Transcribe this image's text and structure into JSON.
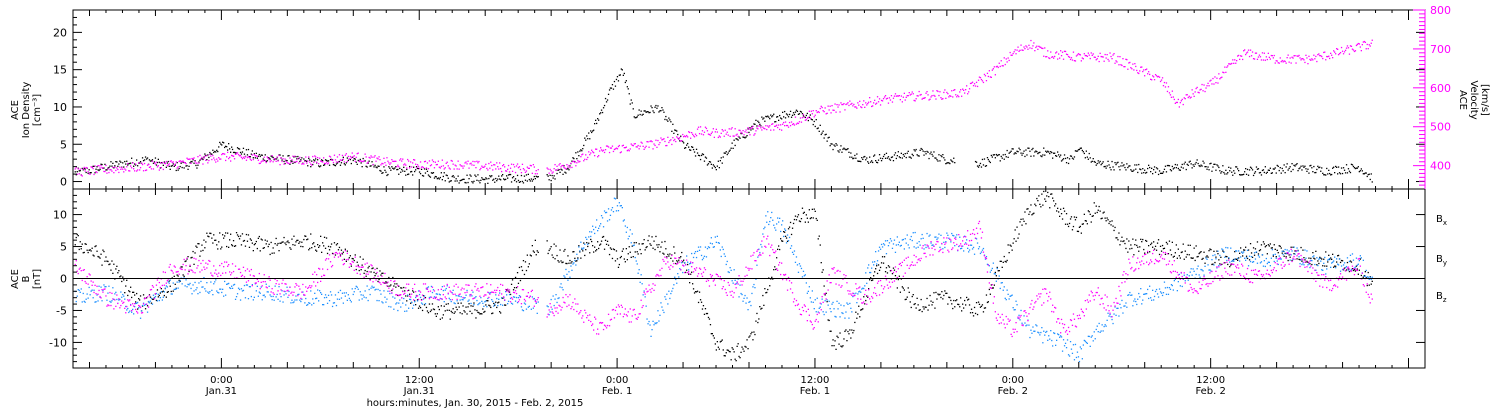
{
  "chart_data": [
    {
      "type": "scatter",
      "panel": "top",
      "ylabel_lines": [
        "ACE",
        "Ion Density",
        "[cm⁻³]"
      ],
      "ylabel_right_lines": [
        "ACE",
        "Velocity",
        "[km/s]"
      ],
      "ylim": [
        -1,
        23
      ],
      "y_ticks": [
        0,
        5,
        10,
        15,
        20
      ],
      "ylim_right": [
        340,
        800
      ],
      "y_ticks_right": [
        400,
        500,
        600,
        700,
        800
      ],
      "series": [
        {
          "name": "Ion Density",
          "axis": "left",
          "color": "#000000",
          "x": [
            -8.9,
            -6,
            -4.5,
            -3,
            -1.5,
            0,
            2,
            4,
            6,
            8,
            10,
            12,
            14,
            16,
            18,
            19.8,
            21,
            22.5,
            23.5,
            24.3,
            25,
            26.5,
            28,
            30,
            31,
            32.5,
            34,
            35,
            36,
            37,
            39,
            41,
            42.5,
            44,
            46,
            48,
            50,
            51.5,
            52,
            53,
            55,
            57,
            59,
            61,
            63,
            65,
            67,
            69,
            69.8
          ],
          "values": [
            1.2,
            2.5,
            3,
            2,
            2.5,
            5,
            3.5,
            3,
            2.5,
            3,
            1.5,
            1.5,
            0.5,
            0.4,
            0.5,
            0.5,
            2,
            7,
            12,
            15,
            9,
            10,
            5,
            2,
            5,
            8,
            9,
            9.5,
            8,
            5,
            3,
            3.5,
            4,
            3,
            2.5,
            4,
            4,
            3,
            4.5,
            2.5,
            2,
            1.5,
            2.5,
            1.5,
            1.5,
            2,
            1.5,
            2,
            0.5
          ]
        },
        {
          "name": "Velocity",
          "axis": "right",
          "color": "#ff00ff",
          "x": [
            -8.9,
            -6,
            -3,
            0,
            2,
            4,
            6,
            8,
            10,
            12,
            14,
            16,
            18,
            19.8,
            21,
            23,
            24,
            26,
            27.5,
            29,
            30,
            32,
            34,
            35,
            36,
            38,
            40,
            42,
            44,
            45,
            46,
            47,
            48,
            49,
            50,
            52,
            54,
            56,
            57,
            58,
            59,
            60,
            62,
            64,
            66,
            68,
            69.8
          ],
          "values": [
            385,
            395,
            405,
            425,
            420,
            415,
            415,
            425,
            410,
            405,
            405,
            400,
            395,
            390,
            405,
            440,
            445,
            455,
            470,
            490,
            485,
            490,
            505,
            520,
            540,
            555,
            570,
            580,
            585,
            590,
            620,
            650,
            690,
            715,
            690,
            680,
            680,
            640,
            620,
            560,
            590,
            610,
            690,
            675,
            675,
            695,
            715
          ]
        }
      ]
    },
    {
      "type": "scatter",
      "panel": "bottom",
      "ylabel_lines": [
        "ACE",
        "B",
        "[nT]"
      ],
      "ylim": [
        -14,
        14
      ],
      "y_ticks": [
        -10,
        -5,
        0,
        5,
        10
      ],
      "zero_line": true,
      "legend": [
        {
          "label": "B",
          "sub": "x",
          "color": "#000000"
        },
        {
          "label": "B",
          "sub": "y",
          "color": "#1e90ff"
        },
        {
          "label": "B",
          "sub": "z",
          "color": "#ff00ff"
        }
      ],
      "series": [
        {
          "name": "Bx",
          "color": "#000000",
          "x": [
            -8.9,
            -7,
            -5,
            -3,
            -1,
            1,
            3,
            5,
            7,
            9,
            11,
            13,
            15,
            17,
            19,
            19.8,
            21,
            23,
            24,
            26,
            28,
            30,
            31,
            32,
            34,
            35,
            36,
            37,
            38,
            40,
            42,
            44,
            46,
            48,
            49,
            50,
            51,
            52,
            53,
            55,
            57,
            59,
            61,
            63,
            65,
            67,
            69,
            69.8
          ],
          "values": [
            6,
            3,
            -4,
            -1,
            6,
            6,
            5,
            6,
            5,
            1,
            -2,
            -5,
            -5,
            -4,
            5,
            5,
            3,
            6,
            3,
            6,
            3,
            -10,
            -12,
            -10,
            6,
            10,
            10,
            -10,
            -9,
            3,
            -4,
            -3,
            -5,
            6,
            11,
            13,
            10,
            8,
            11,
            5,
            5,
            4,
            3,
            5,
            4,
            3,
            2,
            -1
          ]
        },
        {
          "name": "By",
          "color": "#1e90ff",
          "x": [
            -8.9,
            -7,
            -5,
            -3,
            -1,
            1,
            3,
            5,
            7,
            9,
            11,
            13,
            15,
            17,
            19,
            19.8,
            21,
            22,
            23,
            24,
            25,
            26,
            28,
            30,
            32,
            33,
            34,
            35,
            36,
            38,
            40,
            42,
            44,
            46,
            48,
            49,
            50,
            51,
            52,
            53,
            54,
            55,
            57,
            59,
            61,
            63,
            65,
            67,
            69,
            69.8
          ],
          "values": [
            -3,
            -2,
            -5,
            -1,
            -1,
            -2,
            -2,
            -3,
            -3,
            -2,
            -4,
            -2,
            -3,
            -3,
            -4,
            -5,
            1,
            6,
            9,
            12,
            5,
            -8,
            2,
            6,
            -5,
            10,
            8,
            2,
            -4,
            -5,
            5,
            6,
            6,
            5,
            -4,
            -8,
            -9,
            -10,
            -12,
            -8,
            -6,
            -3,
            -2,
            1,
            4,
            3,
            4,
            2,
            3,
            -1
          ]
        },
        {
          "name": "Bz",
          "color": "#ff00ff",
          "x": [
            -8.9,
            -7,
            -5,
            -3,
            -1,
            1,
            3,
            5,
            7,
            9,
            11,
            13,
            15,
            17,
            19,
            19.8,
            21,
            22,
            23,
            24,
            25,
            27,
            29,
            31,
            33,
            35,
            36,
            37,
            39,
            41,
            43,
            45,
            46,
            47,
            48,
            50,
            51,
            52,
            53,
            54,
            55,
            57,
            59,
            61,
            63,
            65,
            67,
            69,
            69.8
          ],
          "values": [
            2,
            -3,
            -5,
            2,
            2,
            1,
            -1,
            -2,
            4,
            1,
            -2,
            -2,
            -2,
            -2,
            -3,
            -5,
            -3,
            -6,
            -8,
            -5,
            -6,
            3,
            1,
            -2,
            6,
            -4,
            -7,
            1,
            -3,
            1,
            5,
            6,
            8,
            -6,
            -8,
            -2,
            -8,
            -6,
            -2,
            -5,
            2,
            4,
            -2,
            2,
            0,
            4,
            -1,
            2,
            -4
          ]
        }
      ]
    }
  ],
  "x_axis": {
    "range_hours": [
      -9,
      73
    ],
    "ticks": [
      {
        "x": 0,
        "time": "0:00",
        "date": "Jan.31"
      },
      {
        "x": 12,
        "time": "12:00",
        "date": "Jan.31"
      },
      {
        "x": 24,
        "time": "0:00",
        "date": "Feb. 1"
      },
      {
        "x": 36,
        "time": "12:00",
        "date": "Feb. 1"
      },
      {
        "x": 48,
        "time": "0:00",
        "date": "Feb. 2"
      },
      {
        "x": 60,
        "time": "12:00",
        "date": "Feb. 2"
      }
    ],
    "title": "hours:minutes, Jan. 30, 2015 - Feb. 2, 2015"
  }
}
